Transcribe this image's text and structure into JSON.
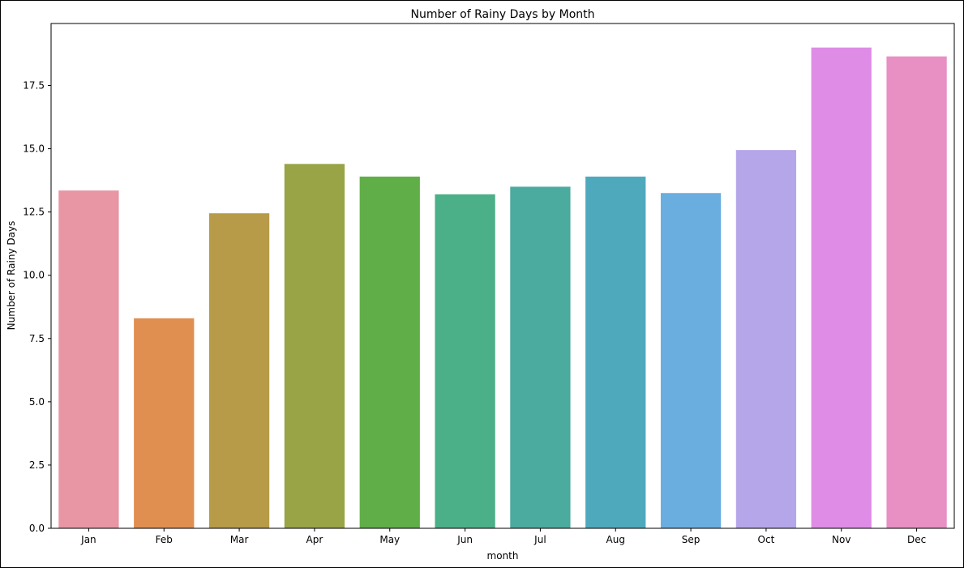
{
  "chart_data": {
    "type": "bar",
    "title": "Number of Rainy Days by Month",
    "xlabel": "month",
    "ylabel": "Number of Rainy Days",
    "categories": [
      "Jan",
      "Feb",
      "Mar",
      "Apr",
      "May",
      "Jun",
      "Jul",
      "Aug",
      "Sep",
      "Oct",
      "Nov",
      "Dec"
    ],
    "values": [
      13.35,
      8.3,
      12.45,
      14.4,
      13.9,
      13.2,
      13.5,
      13.9,
      13.25,
      14.95,
      19.0,
      18.65
    ],
    "colors": [
      "#e896a4",
      "#e08f50",
      "#b89b48",
      "#99a446",
      "#60ae47",
      "#4baf87",
      "#4bab9f",
      "#4fa9bd",
      "#6aaee0",
      "#b5a6ea",
      "#df8ce7",
      "#e88fc4"
    ],
    "yticks": [
      0.0,
      2.5,
      5.0,
      7.5,
      10.0,
      12.5,
      15.0,
      17.5
    ],
    "ylim": [
      0,
      20
    ],
    "grid": false,
    "legend": false
  }
}
